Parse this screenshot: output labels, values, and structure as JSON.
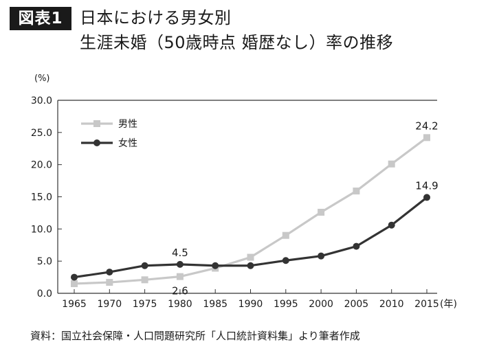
{
  "figure": {
    "badge": "図表1",
    "title_line1": "日本における男女別",
    "title_line2": "生涯未婚（50歳時点 婚歴なし）率の推移"
  },
  "chart_data": {
    "type": "line",
    "y_unit_label": "(%)",
    "x_unit_label": "(年)",
    "x": [
      "1965",
      "1970",
      "1975",
      "1980",
      "1985",
      "1990",
      "1995",
      "2000",
      "2005",
      "2010",
      "2015"
    ],
    "ylim": [
      0,
      30
    ],
    "yticks": [
      "0.0",
      "5.0",
      "10.0",
      "15.0",
      "20.0",
      "25.0",
      "30.0"
    ],
    "grid": false,
    "legend_position": "top-left",
    "series": [
      {
        "name": "男性",
        "marker": "square",
        "color": "#c8c8c8",
        "values": [
          1.5,
          1.7,
          2.1,
          2.6,
          3.9,
          5.6,
          9.0,
          12.6,
          15.9,
          20.1,
          24.2
        ]
      },
      {
        "name": "女性",
        "marker": "circle",
        "color": "#333333",
        "values": [
          2.5,
          3.3,
          4.3,
          4.5,
          4.3,
          4.3,
          5.1,
          5.8,
          7.3,
          10.6,
          14.9
        ]
      }
    ],
    "annotations": [
      {
        "series": 1,
        "index": 3,
        "text": "4.5",
        "place": "above"
      },
      {
        "series": 0,
        "index": 3,
        "text": "2.6",
        "place": "below"
      },
      {
        "series": 0,
        "index": 10,
        "text": "24.2",
        "place": "above"
      },
      {
        "series": 1,
        "index": 10,
        "text": "14.9",
        "place": "above"
      }
    ]
  },
  "source": "資料：国立社会保障・人口問題研究所「人口統計資料集」より筆者作成"
}
